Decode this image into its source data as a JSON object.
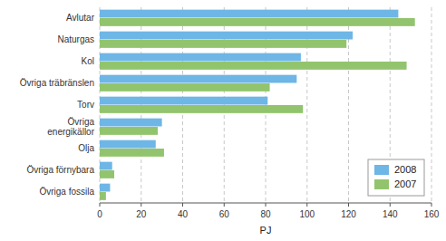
{
  "chart_data": {
    "type": "bar",
    "orientation": "horizontal",
    "categories": [
      "Övriga fossila",
      "Övriga förnybara",
      "Olja",
      "Övriga\nenergikällor",
      "Torv",
      "Övriga träbränslen",
      "Kol",
      "Naturgas",
      "Avlutar"
    ],
    "series": [
      {
        "name": "2008",
        "color": "#6eb6e6",
        "values": [
          5,
          6,
          27,
          30,
          81,
          95,
          97,
          122,
          144
        ]
      },
      {
        "name": "2007",
        "color": "#92c46e",
        "values": [
          3,
          7,
          31,
          28,
          98,
          82,
          148,
          119,
          152
        ]
      }
    ],
    "xlabel": "PJ",
    "xlim": [
      0,
      160
    ],
    "xticks": [
      0,
      20,
      40,
      60,
      80,
      100,
      120,
      140,
      160
    ],
    "grid": true,
    "legend": "lower right"
  }
}
